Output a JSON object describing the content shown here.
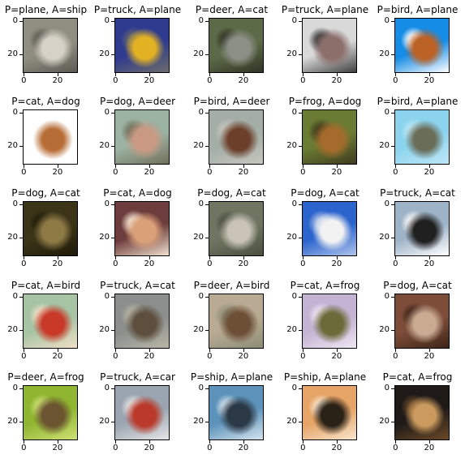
{
  "chart_data": {
    "type": "image-grid",
    "ticks": {
      "x": [
        "0",
        "20"
      ],
      "y": [
        "0",
        "20"
      ]
    },
    "panels": [
      {
        "title": "P=plane, A=ship",
        "bg": "#8f8f82",
        "fg": "#d7d2c8",
        "accent": "#5a5a52"
      },
      {
        "title": "P=truck, A=plane",
        "bg": "#2f3b8a",
        "fg": "#e0b22a",
        "accent": "#6b6b6b"
      },
      {
        "title": "P=deer, A=cat",
        "bg": "#5d6a48",
        "fg": "#8b8f86",
        "accent": "#2f3426"
      },
      {
        "title": "P=truck, A=plane",
        "bg": "#d9d9d9",
        "fg": "#8b6e6b",
        "accent": "#3f3f3f"
      },
      {
        "title": "P=bird, A=plane",
        "bg": "#1a8be0",
        "fg": "#b8632b",
        "accent": "#ffffff"
      },
      {
        "title": "P=cat, A=dog",
        "bg": "#ffffff",
        "fg": "#b46e3a",
        "accent": "#ffffff"
      },
      {
        "title": "P=dog, A=deer",
        "bg": "#9db2a3",
        "fg": "#c79a83",
        "accent": "#6f6f5b"
      },
      {
        "title": "P=bird, A=deer",
        "bg": "#a4aea7",
        "fg": "#6a3f2c",
        "accent": "#c7c7bf"
      },
      {
        "title": "P=frog, A=dog",
        "bg": "#6a7b36",
        "fg": "#a26b2f",
        "accent": "#3f3a1f"
      },
      {
        "title": "P=bird, A=plane",
        "bg": "#8fd3ec",
        "fg": "#6a6e5a",
        "accent": "#bfe7f6"
      },
      {
        "title": "P=dog, A=cat",
        "bg": "#3b3418",
        "fg": "#8c7a48",
        "accent": "#1f1a0a"
      },
      {
        "title": "P=cat, A=dog",
        "bg": "#6b3d3d",
        "fg": "#d8a07a",
        "accent": "#f0e0d0"
      },
      {
        "title": "P=dog, A=cat",
        "bg": "#6e7562",
        "fg": "#c8c2b8",
        "accent": "#4a4f40"
      },
      {
        "title": "P=dog, A=cat",
        "bg": "#2e64c8",
        "fg": "#f2f2f2",
        "accent": "#b0c4e8"
      },
      {
        "title": "P=truck, A=cat",
        "bg": "#9fb3c6",
        "fg": "#202020",
        "accent": "#ffffff"
      },
      {
        "title": "P=cat, A=bird",
        "bg": "#a7c3a5",
        "fg": "#c33a2a",
        "accent": "#f0e0c8"
      },
      {
        "title": "P=truck, A=cat",
        "bg": "#8b8e8c",
        "fg": "#5c4e3e",
        "accent": "#b8b6a8"
      },
      {
        "title": "P=deer, A=bird",
        "bg": "#b7aa94",
        "fg": "#6b4f36",
        "accent": "#8d8c77"
      },
      {
        "title": "P=cat, A=frog",
        "bg": "#c4b3d2",
        "fg": "#6b6a3a",
        "accent": "#efe7f2"
      },
      {
        "title": "P=dog, A=cat",
        "bg": "#7b4d3a",
        "fg": "#c9ab93",
        "accent": "#3d2418"
      },
      {
        "title": "P=deer, A=frog",
        "bg": "#90b436",
        "fg": "#6a5432",
        "accent": "#cfe07a"
      },
      {
        "title": "P=truck, A=car",
        "bg": "#9aa5b0",
        "fg": "#b53a2c",
        "accent": "#e6e6e6"
      },
      {
        "title": "P=ship, A=plane",
        "bg": "#5f93b8",
        "fg": "#2c3844",
        "accent": "#d7e4ee"
      },
      {
        "title": "P=ship, A=plane",
        "bg": "#e4a46a",
        "fg": "#2b2218",
        "accent": "#f7e6cf"
      },
      {
        "title": "P=cat, A=frog",
        "bg": "#1f1a18",
        "fg": "#c89a61",
        "accent": "#6b4a2a"
      }
    ]
  }
}
